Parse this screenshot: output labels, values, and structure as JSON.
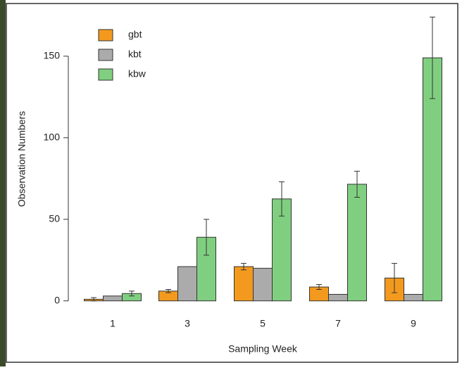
{
  "chart_data": {
    "type": "bar",
    "x_label": "Sampling Week",
    "y_label": "Observation Numbers",
    "categories": [
      "1",
      "3",
      "5",
      "7",
      "9"
    ],
    "series": [
      {
        "name": "gbt",
        "color": "#f39a1e",
        "values": [
          1,
          6,
          21,
          8.5,
          14
        ],
        "errors": [
          1,
          1,
          2,
          1.5,
          9
        ]
      },
      {
        "name": "kbt",
        "color": "#ababab",
        "values": [
          3,
          21,
          20,
          4,
          4
        ]
      },
      {
        "name": "kbw",
        "color": "#80cf80",
        "values": [
          4.5,
          39,
          62.5,
          71.5,
          149
        ],
        "errors": [
          1.5,
          11,
          10.5,
          8,
          25
        ]
      }
    ],
    "ylim": [
      -4,
      181
    ],
    "yticks": [
      0,
      50,
      100,
      150
    ],
    "legend": "top-left"
  }
}
